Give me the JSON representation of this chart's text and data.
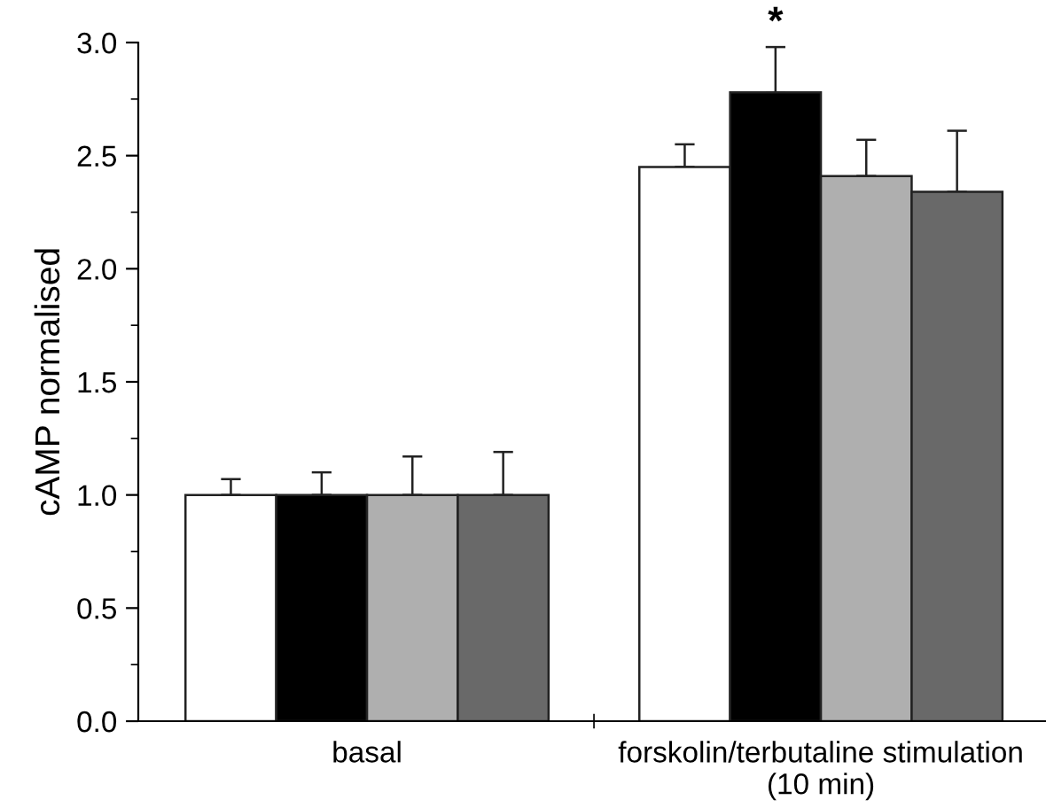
{
  "chart_data": {
    "type": "bar",
    "ylabel": "cAMP normalised",
    "categories": [
      "basal",
      "forskolin/terbutaline stimulation\n(10 min)"
    ],
    "series": [
      {
        "color": "#ffffff",
        "values": [
          1.0,
          2.45
        ],
        "errors": [
          [
            1.0,
            1.07
          ],
          [
            2.45,
            2.55
          ]
        ]
      },
      {
        "color": "#000000",
        "values": [
          1.0,
          2.78
        ],
        "errors": [
          [
            1.0,
            1.1
          ],
          [
            2.78,
            2.98
          ]
        ]
      },
      {
        "color": "#afafaf",
        "values": [
          1.0,
          2.41
        ],
        "errors": [
          [
            1.0,
            1.17
          ],
          [
            2.41,
            2.57
          ]
        ]
      },
      {
        "color": "#696969",
        "values": [
          1.0,
          2.34
        ],
        "errors": [
          [
            1.0,
            1.19
          ],
          [
            2.34,
            2.61
          ]
        ]
      }
    ],
    "ylim": [
      0,
      3.0
    ],
    "yticks": [
      {
        "value": 0,
        "label": "0.0"
      },
      0.5,
      {
        "value": 1,
        "label": "1.0"
      },
      1.5,
      {
        "value": 2,
        "label": "2.0"
      },
      2.5,
      {
        "value": 3,
        "label": "3.0"
      }
    ],
    "annotations": [
      "*"
    ],
    "grid": false,
    "legend": false
  }
}
